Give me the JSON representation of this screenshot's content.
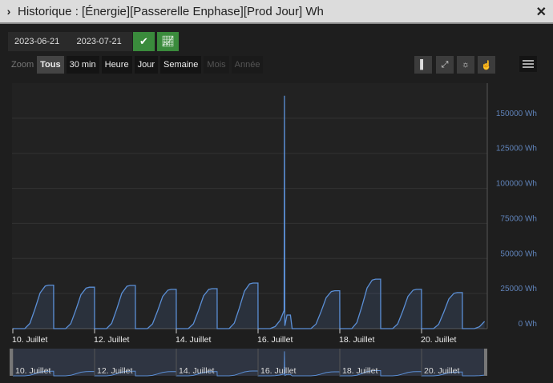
{
  "window": {
    "title": "Historique : [Énergie][Passerelle Enphase][Prod Jour] Wh",
    "expand_icon": "chevron-right-icon",
    "close_icon": "close-icon"
  },
  "dates": {
    "start": "2023-06-21",
    "end": "2023-07-21"
  },
  "buttons": {
    "validate_icon": "check-icon",
    "chart_icon": "chart-line-icon"
  },
  "zoom": {
    "label": "Zoom",
    "options": [
      {
        "label": "Tous",
        "state": "selected"
      },
      {
        "label": "30 min",
        "state": "enabled"
      },
      {
        "label": "Heure",
        "state": "enabled"
      },
      {
        "label": "Jour",
        "state": "enabled"
      },
      {
        "label": "Semaine",
        "state": "enabled"
      },
      {
        "label": "Mois",
        "state": "disabled"
      },
      {
        "label": "Année",
        "state": "disabled"
      }
    ]
  },
  "tools": [
    "column-icon",
    "compress-icon",
    "sun-icon",
    "pointer-hand-icon"
  ],
  "menu_icon": "hamburger-icon",
  "colors": {
    "series": "#5b8fd6",
    "axis_label": "#5f82b8",
    "title_bar": "#dcdcdc",
    "green": "#3a8b3c"
  },
  "chart_data": {
    "type": "area",
    "unit": "Wh",
    "ylim": [
      0,
      175000
    ],
    "y_ticks": [
      "0 Wh",
      "25000 Wh",
      "50000 Wh",
      "75000 Wh",
      "100000 Wh",
      "125000 Wh",
      "150000 Wh"
    ],
    "x_ticks": [
      "10. Juillet",
      "12. Juillet",
      "14. Juillet",
      "16. Juillet",
      "18. Juillet",
      "20. Juillet"
    ],
    "xlim": [
      "2023-07-10 00:00",
      "2023-07-21 14:00"
    ],
    "grid": true,
    "daily_max": [
      {
        "date": "2023-07-10",
        "value": 31000
      },
      {
        "date": "2023-07-11",
        "value": 29500
      },
      {
        "date": "2023-07-12",
        "value": 30800
      },
      {
        "date": "2023-07-13",
        "value": 28000
      },
      {
        "date": "2023-07-14",
        "value": 28500
      },
      {
        "date": "2023-07-15",
        "value": 32500
      },
      {
        "date": "2023-07-16",
        "value": 9700
      },
      {
        "date": "2023-07-17",
        "value": 27000
      },
      {
        "date": "2023-07-18",
        "value": 35300
      },
      {
        "date": "2023-07-19",
        "value": 28000
      },
      {
        "date": "2023-07-20",
        "value": 25700
      },
      {
        "date": "2023-07-21",
        "value": 11400
      }
    ],
    "spike": {
      "datetime": "2023-07-16 15:30",
      "value": 166000
    }
  }
}
